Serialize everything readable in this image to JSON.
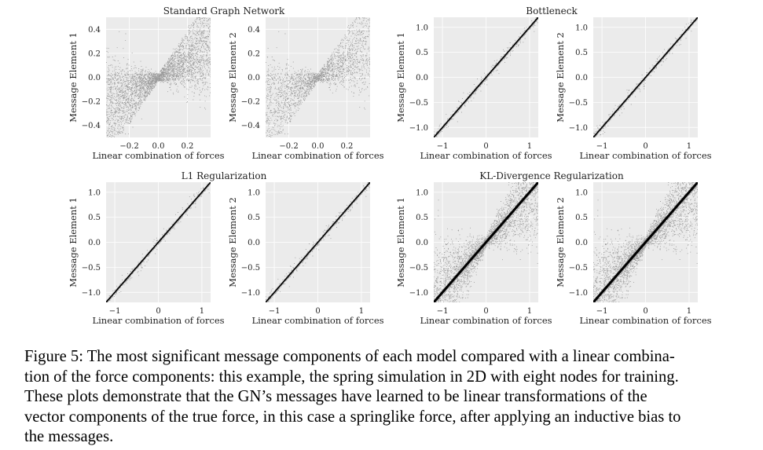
{
  "figure": {
    "groups": [
      {
        "title": "Standard Graph Network"
      },
      {
        "title": "Bottleneck"
      },
      {
        "title": "L1 Regularization"
      },
      {
        "title": "KL-Divergence Regularization"
      }
    ],
    "panel_labels": {
      "xlabel": "Linear combination of forces",
      "ylabel_1": "Message Element 1",
      "ylabel_2": "Message Element 2"
    }
  },
  "chart_data": [
    {
      "type": "scatter",
      "group": "Standard Graph Network",
      "title": "Standard Graph Network",
      "xlabel": "Linear combination of forces",
      "ylabel": "Message Element 1",
      "xlim": [
        -0.36,
        0.36
      ],
      "ylim": [
        -0.5,
        0.5
      ],
      "xticks": [
        "−0.2",
        "0.0",
        "0.2"
      ],
      "yticks": [
        "−0.4",
        "−0.2",
        "0.0",
        "0.2",
        "0.4"
      ],
      "pattern": "x-shaped cloud: density widening away from origin",
      "grid": true
    },
    {
      "type": "scatter",
      "group": "Standard Graph Network",
      "title": "",
      "xlabel": "Linear combination of forces",
      "ylabel": "Message Element 2",
      "xlim": [
        -0.36,
        0.36
      ],
      "ylim": [
        -0.5,
        0.5
      ],
      "xticks": [
        "−0.2",
        "0.0",
        "0.2"
      ],
      "yticks": [
        "−0.4",
        "−0.2",
        "0.0",
        "0.2",
        "0.4"
      ],
      "pattern": "x-shaped cloud: density widening away from origin",
      "grid": true
    },
    {
      "type": "scatter",
      "group": "Bottleneck",
      "title": "Bottleneck",
      "xlabel": "Linear combination of forces",
      "ylabel": "Message Element 1",
      "xlim": [
        -1.2,
        1.2
      ],
      "ylim": [
        -1.2,
        1.2
      ],
      "xticks": [
        "−1",
        "0",
        "1"
      ],
      "yticks": [
        "−1.0",
        "−0.5",
        "0.0",
        "0.5",
        "1.0"
      ],
      "pattern": "tight line y = x",
      "grid": true
    },
    {
      "type": "scatter",
      "group": "Bottleneck",
      "title": "",
      "xlabel": "Linear combination of forces",
      "ylabel": "Message Element 2",
      "xlim": [
        -1.2,
        1.2
      ],
      "ylim": [
        -1.2,
        1.2
      ],
      "xticks": [
        "−1",
        "0",
        "1"
      ],
      "yticks": [
        "−1.0",
        "−0.5",
        "0.0",
        "0.5",
        "1.0"
      ],
      "pattern": "tight line y = x",
      "grid": true
    },
    {
      "type": "scatter",
      "group": "L1 Regularization",
      "title": "L1 Regularization",
      "xlabel": "Linear combination of forces",
      "ylabel": "Message Element 1",
      "xlim": [
        -1.2,
        1.2
      ],
      "ylim": [
        -1.2,
        1.2
      ],
      "xticks": [
        "−1",
        "0",
        "1"
      ],
      "yticks": [
        "−1.0",
        "−0.5",
        "0.0",
        "0.5",
        "1.0"
      ],
      "pattern": "tight line y = x",
      "grid": true
    },
    {
      "type": "scatter",
      "group": "L1 Regularization",
      "title": "",
      "xlabel": "Linear combination of forces",
      "ylabel": "Message Element 2",
      "xlim": [
        -1.2,
        1.2
      ],
      "ylim": [
        -1.2,
        1.2
      ],
      "xticks": [
        "−1",
        "0",
        "1"
      ],
      "yticks": [
        "−1.0",
        "−0.5",
        "0.0",
        "0.5",
        "1.0"
      ],
      "pattern": "tight line y = x",
      "grid": true
    },
    {
      "type": "scatter",
      "group": "KL-Divergence Regularization",
      "title": "KL-Divergence Regularization",
      "xlabel": "Linear combination of forces",
      "ylabel": "Message Element 1",
      "xlim": [
        -1.2,
        1.2
      ],
      "ylim": [
        -1.2,
        1.2
      ],
      "xticks": [
        "−1",
        "0",
        "1"
      ],
      "yticks": [
        "−1.0",
        "−0.5",
        "0.0",
        "0.5",
        "1.0"
      ],
      "pattern": "line y = x with wide fanning spread",
      "grid": true
    },
    {
      "type": "scatter",
      "group": "KL-Divergence Regularization",
      "title": "",
      "xlabel": "Linear combination of forces",
      "ylabel": "Message Element 2",
      "xlim": [
        -1.2,
        1.2
      ],
      "ylim": [
        -1.2,
        1.2
      ],
      "xticks": [
        "−1",
        "0",
        "1"
      ],
      "yticks": [
        "−1.0",
        "−0.5",
        "0.0",
        "0.5",
        "1.0"
      ],
      "pattern": "line y = x with wide fanning spread",
      "grid": true
    }
  ],
  "caption": {
    "lines": [
      "Figure 5: The most significant message components of each model compared with a linear combina-",
      "tion of the force components: this example, the spring simulation in 2D with eight nodes for training.",
      "These plots demonstrate that the GN’s messages have learned to be linear transformations of the",
      "vector components of the true force, in this case a springlike force, after applying an inductive bias to",
      "the messages."
    ]
  },
  "colors": {
    "plot_bg": "#ebebeb",
    "grid": "#ffffff",
    "points": "#000000",
    "text": "#222222"
  }
}
